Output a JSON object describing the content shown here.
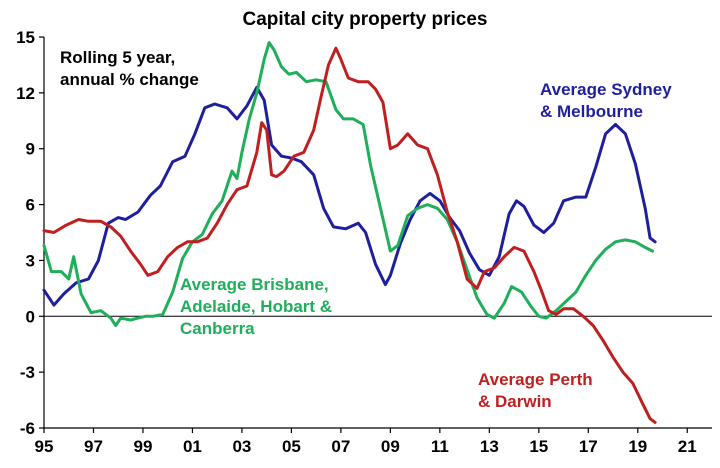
{
  "chart_data": {
    "type": "line",
    "title": "Capital city property prices",
    "subtitle_lines": [
      "Rolling 5 year,",
      "annual % change"
    ],
    "xlim": [
      1995,
      2022
    ],
    "ylim": [
      -6,
      15
    ],
    "x_ticks": [
      {
        "value": 1995,
        "label": "95"
      },
      {
        "value": 1997,
        "label": "97"
      },
      {
        "value": 1999,
        "label": "99"
      },
      {
        "value": 2001,
        "label": "01"
      },
      {
        "value": 2003,
        "label": "03"
      },
      {
        "value": 2005,
        "label": "05"
      },
      {
        "value": 2007,
        "label": "07"
      },
      {
        "value": 2009,
        "label": "09"
      },
      {
        "value": 2011,
        "label": "11"
      },
      {
        "value": 2013,
        "label": "13"
      },
      {
        "value": 2015,
        "label": "15"
      },
      {
        "value": 2017,
        "label": "17"
      },
      {
        "value": 2019,
        "label": "19"
      },
      {
        "value": 2021,
        "label": "21"
      }
    ],
    "y_ticks": [
      15,
      12,
      9,
      6,
      3,
      0,
      -3,
      -6
    ],
    "grid": false,
    "series": [
      {
        "id": "syd-mel",
        "label_lines": [
          "Average Sydney",
          "& Melbourne"
        ],
        "color": "#1f1f9e",
        "x": [
          1995.0,
          1995.4,
          1995.8,
          1996.3,
          1996.8,
          1997.2,
          1997.6,
          1998.0,
          1998.3,
          1998.8,
          1999.3,
          1999.7,
          2000.2,
          2000.7,
          2001.1,
          2001.5,
          2001.9,
          2002.4,
          2002.8,
          2003.2,
          2003.6,
          2003.9,
          2004.2,
          2004.6,
          2005.0,
          2005.4,
          2005.9,
          2006.3,
          2006.7,
          2007.2,
          2007.7,
          2008.0,
          2008.4,
          2008.8,
          2009.0,
          2009.4,
          2009.8,
          2010.2,
          2010.6,
          2011.0,
          2011.4,
          2011.8,
          2012.2,
          2012.6,
          2013.0,
          2013.4,
          2013.8,
          2014.1,
          2014.4,
          2014.8,
          2015.2,
          2015.6,
          2016.0,
          2016.5,
          2016.9,
          2017.3,
          2017.7,
          2018.1,
          2018.5,
          2018.9,
          2019.3,
          2019.5,
          2019.7
        ],
        "y": [
          1.4,
          0.6,
          1.2,
          1.8,
          2.0,
          3.0,
          5.0,
          5.3,
          5.2,
          5.6,
          6.5,
          7.0,
          8.3,
          8.6,
          9.8,
          11.2,
          11.4,
          11.2,
          10.6,
          11.3,
          12.3,
          11.6,
          9.2,
          8.6,
          8.5,
          8.3,
          7.6,
          5.8,
          4.8,
          4.7,
          5.0,
          4.5,
          2.8,
          1.7,
          2.2,
          3.9,
          5.2,
          6.2,
          6.6,
          6.2,
          5.3,
          4.6,
          3.4,
          2.5,
          2.2,
          3.2,
          5.5,
          6.2,
          5.9,
          4.9,
          4.5,
          5.0,
          6.2,
          6.4,
          6.4,
          8.0,
          9.8,
          10.3,
          9.8,
          8.2,
          5.8,
          4.2,
          4.0
        ]
      },
      {
        "id": "bris-adl-hob-can",
        "label_lines": [
          "Average Brisbane,",
          "Adelaide, Hobart &",
          "Canberra"
        ],
        "color": "#1fae5a",
        "x": [
          1995.0,
          1995.3,
          1995.7,
          1996.0,
          1996.2,
          1996.5,
          1996.9,
          1997.3,
          1997.7,
          1997.9,
          1998.1,
          1998.5,
          1998.8,
          1999.1,
          1999.4,
          1999.8,
          2000.2,
          2000.6,
          2001.0,
          2001.4,
          2001.8,
          2002.2,
          2002.6,
          2002.8,
          2003.0,
          2003.3,
          2003.6,
          2003.9,
          2004.1,
          2004.3,
          2004.6,
          2004.9,
          2005.2,
          2005.6,
          2006.0,
          2006.4,
          2006.8,
          2007.1,
          2007.5,
          2007.9,
          2008.2,
          2008.6,
          2009.0,
          2009.3,
          2009.7,
          2010.1,
          2010.5,
          2010.9,
          2011.3,
          2011.7,
          2012.1,
          2012.5,
          2012.9,
          2013.2,
          2013.6,
          2013.9,
          2014.3,
          2014.7,
          2015.0,
          2015.3,
          2015.7,
          2016.1,
          2016.5,
          2016.9,
          2017.3,
          2017.7,
          2018.1,
          2018.5,
          2018.9,
          2019.3,
          2019.6
        ],
        "y": [
          3.8,
          2.4,
          2.4,
          2.0,
          3.2,
          1.2,
          0.2,
          0.3,
          -0.1,
          -0.5,
          -0.1,
          -0.2,
          -0.1,
          0.0,
          0.0,
          0.1,
          1.3,
          3.1,
          4.0,
          4.4,
          5.5,
          6.2,
          7.8,
          7.4,
          8.8,
          10.6,
          12.0,
          13.8,
          14.7,
          14.3,
          13.4,
          13.0,
          13.1,
          12.6,
          12.7,
          12.6,
          11.1,
          10.6,
          10.6,
          10.3,
          8.1,
          5.8,
          3.5,
          3.8,
          5.4,
          5.8,
          6.0,
          5.8,
          5.2,
          4.0,
          2.5,
          1.0,
          0.1,
          -0.1,
          0.7,
          1.6,
          1.3,
          0.5,
          0.0,
          -0.1,
          0.3,
          0.8,
          1.3,
          2.2,
          3.0,
          3.6,
          4.0,
          4.1,
          4.0,
          3.7,
          3.5
        ]
      },
      {
        "id": "per-dar",
        "label_lines": [
          "Average Perth",
          "& Darwin"
        ],
        "color": "#c01f1f",
        "x": [
          1995.0,
          1995.4,
          1995.9,
          1996.4,
          1996.8,
          1997.3,
          1997.7,
          1998.1,
          1998.5,
          1998.9,
          1999.2,
          1999.6,
          2000.0,
          2000.4,
          2000.8,
          2001.2,
          2001.6,
          2002.0,
          2002.4,
          2002.8,
          2003.2,
          2003.6,
          2003.8,
          2004.0,
          2004.2,
          2004.4,
          2004.7,
          2005.1,
          2005.5,
          2005.9,
          2006.2,
          2006.5,
          2006.8,
          2007.0,
          2007.3,
          2007.7,
          2008.1,
          2008.4,
          2008.7,
          2009.0,
          2009.3,
          2009.7,
          2010.1,
          2010.5,
          2010.9,
          2011.3,
          2011.7,
          2012.1,
          2012.5,
          2012.8,
          2013.2,
          2013.6,
          2014.0,
          2014.4,
          2014.8,
          2015.1,
          2015.4,
          2015.7,
          2016.0,
          2016.4,
          2016.8,
          2017.2,
          2017.6,
          2018.0,
          2018.4,
          2018.8,
          2019.2,
          2019.5,
          2019.7
        ],
        "y": [
          4.6,
          4.5,
          4.9,
          5.2,
          5.1,
          5.1,
          4.8,
          4.3,
          3.5,
          2.8,
          2.2,
          2.4,
          3.2,
          3.7,
          4.0,
          4.0,
          4.2,
          5.0,
          6.0,
          6.8,
          7.0,
          8.8,
          10.4,
          10.0,
          7.6,
          7.5,
          7.8,
          8.6,
          8.8,
          10.0,
          11.8,
          13.5,
          14.4,
          13.8,
          12.8,
          12.6,
          12.6,
          12.2,
          11.5,
          9.0,
          9.2,
          9.8,
          9.2,
          9.0,
          7.6,
          5.6,
          4.0,
          2.0,
          1.5,
          2.4,
          2.6,
          3.2,
          3.7,
          3.5,
          2.4,
          1.4,
          0.3,
          0.1,
          0.4,
          0.4,
          0.0,
          -0.5,
          -1.3,
          -2.2,
          -3.0,
          -3.6,
          -4.7,
          -5.5,
          -5.7
        ]
      }
    ]
  }
}
